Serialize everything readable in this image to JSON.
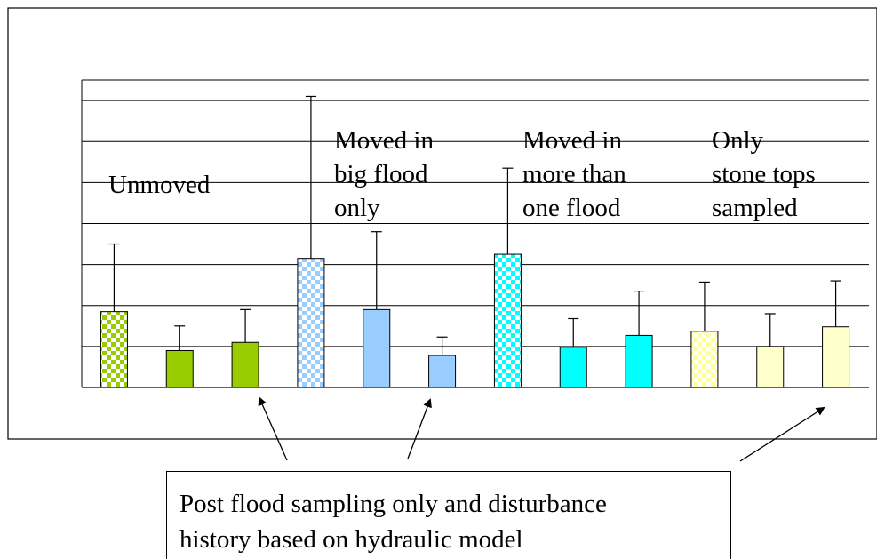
{
  "chart_data": {
    "type": "bar",
    "title": "",
    "xlabel": "",
    "ylabel": "",
    "grid": true,
    "group_labels": [
      {
        "id": "unmoved",
        "lines": [
          "Unmoved"
        ]
      },
      {
        "id": "big-flood",
        "lines": [
          "Moved in",
          "big flood",
          "only"
        ]
      },
      {
        "id": "multi-flood",
        "lines": [
          "Moved in",
          "more than",
          "one flood"
        ]
      },
      {
        "id": "stone-tops",
        "lines": [
          "Only",
          "stone tops",
          "sampled"
        ]
      }
    ],
    "bars": [
      {
        "group": "unmoved",
        "value": 1.85,
        "error": 1.65,
        "color": "#99cc00",
        "pattern": "checker"
      },
      {
        "group": "unmoved",
        "value": 0.9,
        "error": 0.6,
        "color": "#99cc00",
        "pattern": "solid"
      },
      {
        "group": "unmoved",
        "value": 1.1,
        "error": 0.8,
        "color": "#99cc00",
        "pattern": "solid"
      },
      {
        "group": "big-flood",
        "value": 3.15,
        "error": 3.95,
        "color": "#99ccff",
        "pattern": "checker"
      },
      {
        "group": "big-flood",
        "value": 1.9,
        "error": 1.9,
        "color": "#99ccff",
        "pattern": "solid"
      },
      {
        "group": "big-flood",
        "value": 0.78,
        "error": 0.45,
        "color": "#99ccff",
        "pattern": "solid"
      },
      {
        "group": "multi-flood",
        "value": 3.25,
        "error": 2.1,
        "color": "#00ffff",
        "pattern": "checker"
      },
      {
        "group": "multi-flood",
        "value": 0.98,
        "error": 0.7,
        "color": "#00ffff",
        "pattern": "solid"
      },
      {
        "group": "multi-flood",
        "value": 1.27,
        "error": 1.08,
        "color": "#00ffff",
        "pattern": "solid"
      },
      {
        "group": "stone-tops",
        "value": 1.37,
        "error": 1.2,
        "color": "#ffff99",
        "pattern": "checker"
      },
      {
        "group": "stone-tops",
        "value": 1.0,
        "error": 0.8,
        "color": "#ffffcc",
        "pattern": "solid"
      },
      {
        "group": "stone-tops",
        "value": 1.48,
        "error": 1.12,
        "color": "#ffffcc",
        "pattern": "solid"
      }
    ],
    "ylim": [
      0,
      7.5
    ],
    "gridlines": [
      1,
      2,
      3,
      4,
      5,
      6,
      7
    ]
  },
  "annotation": {
    "lines": [
      "Post flood sampling only and disturbance",
      "history based on hydraulic model"
    ]
  }
}
